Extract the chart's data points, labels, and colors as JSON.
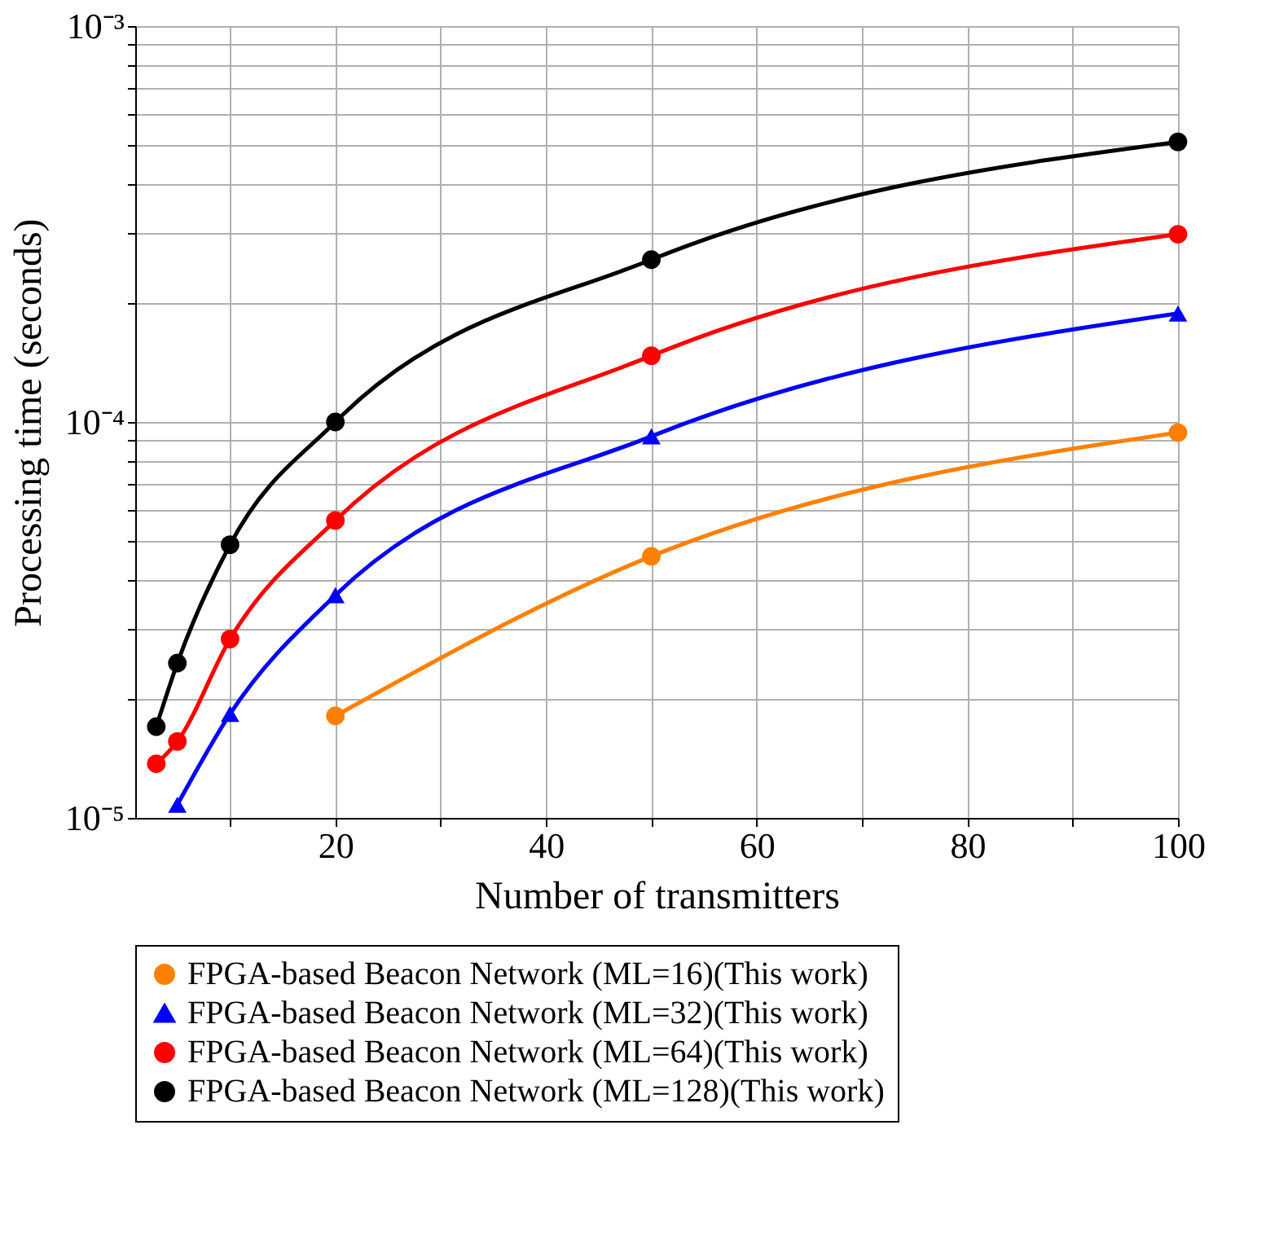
{
  "chart_data": {
    "type": "line",
    "xlabel": "Number of transmitters",
    "ylabel": "Processing time (seconds)",
    "log": "y",
    "grid": true,
    "legend": "bottom",
    "marker": "circle",
    "line_style": "solid",
    "xlim": [
      1,
      100
    ],
    "xticks": [
      {
        "value": 10,
        "label": null
      },
      20,
      {
        "value": 30,
        "label": null
      },
      40,
      {
        "value": 50,
        "label": null
      },
      60,
      {
        "value": 70,
        "label": null
      },
      80,
      {
        "value": 90,
        "label": null
      },
      100
    ],
    "ylim": [
      1e-05,
      0.001
    ],
    "yticks": [
      {
        "value": 1e-05,
        "label": "10⁻⁵"
      },
      {
        "value": 2e-05,
        "label": null
      },
      {
        "value": 3e-05,
        "label": null
      },
      {
        "value": 4e-05,
        "label": null
      },
      {
        "value": 5e-05,
        "label": null
      },
      {
        "value": 6e-05,
        "label": null
      },
      {
        "value": 7e-05,
        "label": null
      },
      {
        "value": 8e-05,
        "label": null
      },
      {
        "value": 9e-05,
        "label": null
      },
      {
        "value": 0.0001,
        "label": "10⁻⁴"
      },
      {
        "value": 0.0002,
        "label": null
      },
      {
        "value": 0.0003,
        "label": null
      },
      {
        "value": 0.0004,
        "label": null
      },
      {
        "value": 0.0005,
        "label": null
      },
      {
        "value": 0.0006,
        "label": null
      },
      {
        "value": 0.0007,
        "label": null
      },
      {
        "value": 0.0008,
        "label": null
      },
      {
        "value": 0.0009,
        "label": null
      },
      {
        "value": 0.001,
        "label": "10⁻³"
      }
    ],
    "series": [
      {
        "name": "FPGA-based Beacon Network (ML=16)(This work)",
        "color": "#ff8000",
        "marker": "circle",
        "x": [
          20,
          50,
          100
        ],
        "values": [
          1.81e-05,
          4.58e-05,
          9.4e-05
        ]
      },
      {
        "name": "FPGA-based Beacon Network (ML=32)(This work)",
        "color": "#0000ff",
        "marker": "triangle",
        "x": [
          5,
          10,
          20,
          50,
          100
        ],
        "values": [
          1.08e-05,
          1.83e-05,
          3.65e-05,
          9.2e-05,
          0.000188
        ]
      },
      {
        "name": "FPGA-based Beacon Network (ML=64)(This work)",
        "color": "#ff0000",
        "marker": "circle",
        "x": [
          3,
          5,
          10,
          20,
          50,
          100
        ],
        "values": [
          1.37e-05,
          1.56e-05,
          2.83e-05,
          5.64e-05,
          0.000147,
          0.000298
        ]
      },
      {
        "name": "FPGA-based Beacon Network (ML=128)(This work)",
        "color": "#000000",
        "marker": "circle",
        "x": [
          3,
          5,
          10,
          20,
          50,
          100
        ],
        "values": [
          1.7e-05,
          2.46e-05,
          4.9e-05,
          0.0001,
          0.000257,
          0.00051
        ]
      }
    ]
  }
}
